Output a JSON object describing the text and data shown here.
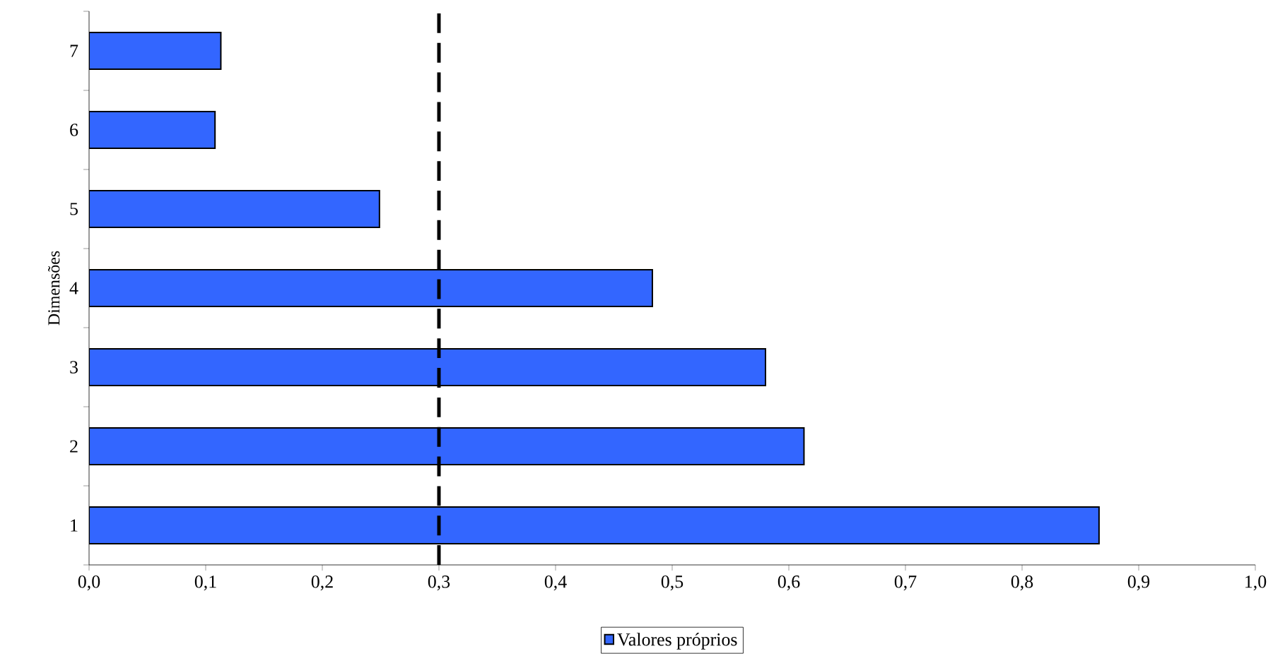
{
  "chart_data": {
    "type": "bar",
    "orientation": "horizontal",
    "ylabel": "Dimensões",
    "categories": [
      "7",
      "6",
      "5",
      "4",
      "3",
      "2",
      "1"
    ],
    "series": [
      {
        "name": "Valores próprios",
        "color": "#3366ff",
        "values": [
          0.113,
          0.108,
          0.249,
          0.483,
          0.58,
          0.613,
          0.866
        ]
      }
    ],
    "xlim": [
      0,
      1
    ],
    "xticks": [
      {
        "value": 0,
        "label": "0,0"
      },
      {
        "value": 0.1,
        "label": "0,1"
      },
      {
        "value": 0.2,
        "label": "0,2"
      },
      {
        "value": 0.3,
        "label": "0,3"
      },
      {
        "value": 0.4,
        "label": "0,4"
      },
      {
        "value": 0.5,
        "label": "0,5"
      },
      {
        "value": 0.6,
        "label": "0,6"
      },
      {
        "value": 0.7,
        "label": "0,7"
      },
      {
        "value": 0.8,
        "label": "0,8"
      },
      {
        "value": 0.9,
        "label": "0,9"
      },
      {
        "value": 1,
        "label": "1,0"
      }
    ],
    "ref_lines": [
      {
        "axis": "x",
        "value": 0.3,
        "color": "#000000",
        "line_style": "dashed"
      }
    ],
    "legend": "bottom",
    "grid": false
  }
}
